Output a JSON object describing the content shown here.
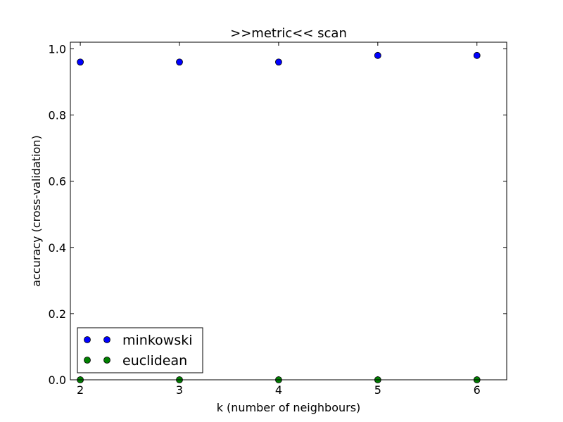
{
  "chart_data": {
    "type": "scatter",
    "title": ">>metric<< scan",
    "xlabel": "k (number of neighbours)",
    "ylabel": "accuracy (cross-validation)",
    "xlim": [
      1.9,
      6.3
    ],
    "ylim": [
      0.0,
      1.02
    ],
    "xticks": [
      2,
      3,
      4,
      5,
      6
    ],
    "yticks": [
      0.0,
      0.2,
      0.4,
      0.6,
      0.8,
      1.0
    ],
    "xtick_labels": [
      "2",
      "3",
      "4",
      "5",
      "6"
    ],
    "ytick_labels": [
      "0.0",
      "0.2",
      "0.4",
      "0.6",
      "0.8",
      "1.0"
    ],
    "grid": false,
    "legend_position": "lower-left",
    "series": [
      {
        "name": "minkowski",
        "color": "#0000ff",
        "x": [
          2,
          3,
          4,
          5,
          6
        ],
        "y": [
          0.96,
          0.96,
          0.96,
          0.98,
          0.98
        ]
      },
      {
        "name": "euclidean",
        "color": "#008000",
        "x": [
          2,
          3,
          4,
          5,
          6
        ],
        "y": [
          0.0,
          0.0,
          0.0,
          0.0,
          0.0
        ]
      }
    ]
  }
}
